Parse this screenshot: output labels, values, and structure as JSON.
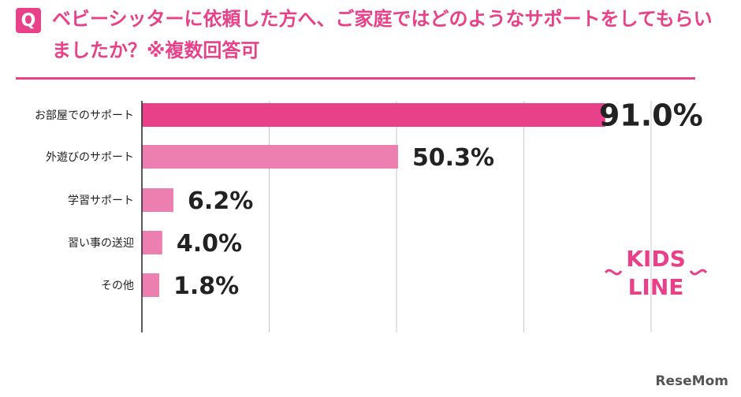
{
  "header": {
    "badge": "Q",
    "title": "ベビーシッターに依頼した方へ、ご家庭ではどのようなサポートをしてもらいましたか？※複数回答可"
  },
  "colors": {
    "accent": "#e8418a",
    "bar_primary": "#e8418a",
    "bar_secondary": "#ec7fb0"
  },
  "chart_data": {
    "type": "bar",
    "orientation": "horizontal",
    "categories": [
      "お部屋でのサポート",
      "外遊びのサポート",
      "学習サポート",
      "習い事の送迎",
      "その他"
    ],
    "values": [
      91.0,
      50.3,
      6.2,
      4.0,
      1.8
    ],
    "value_labels": [
      "91.0%",
      "50.3%",
      "6.2%",
      "4.0%",
      "1.8%"
    ],
    "xlim": [
      0,
      100
    ],
    "grid": true,
    "legend": "none"
  },
  "logo": {
    "line1": "KIDS",
    "line2": "LINE"
  },
  "footer": {
    "watermark": "ReseMom"
  }
}
